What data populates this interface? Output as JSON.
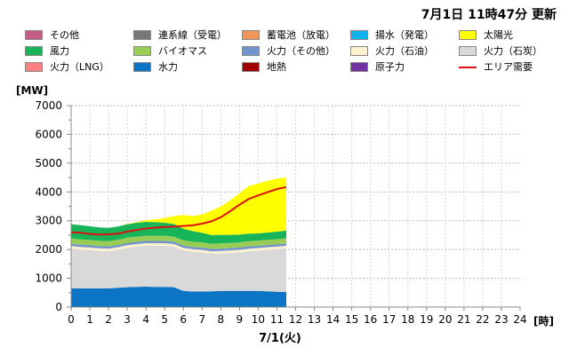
{
  "header": {
    "updated": "7月1日  11時47分 更新"
  },
  "legend": [
    {
      "label": "その他",
      "color": "#c45a86",
      "kind": "box"
    },
    {
      "label": "連系線（受電）",
      "color": "#777777",
      "kind": "box"
    },
    {
      "label": "蓄電池（放電）",
      "color": "#f0965a",
      "kind": "box"
    },
    {
      "label": "揚水（発電）",
      "color": "#11b3ee",
      "kind": "box"
    },
    {
      "label": "太陽光",
      "color": "#ffff00",
      "kind": "box"
    },
    {
      "label": "風力",
      "color": "#18b45a",
      "kind": "box"
    },
    {
      "label": "バイオマス",
      "color": "#99cc55",
      "kind": "box"
    },
    {
      "label": "火力（その他）",
      "color": "#7294cc",
      "kind": "box"
    },
    {
      "label": "火力（石油）",
      "color": "#fdf1d0",
      "kind": "box"
    },
    {
      "label": "火力（石炭）",
      "color": "#d9d9d9",
      "kind": "box"
    },
    {
      "label": "火力（LNG）",
      "color": "#ff8080",
      "kind": "box"
    },
    {
      "label": "水力",
      "color": "#0b74c4",
      "kind": "box"
    },
    {
      "label": "地熱",
      "color": "#a00000",
      "kind": "box"
    },
    {
      "label": "原子力",
      "color": "#7030a0",
      "kind": "box"
    },
    {
      "label": "エリア需要",
      "color": "#dd1111",
      "kind": "line"
    }
  ],
  "chart_data": {
    "type": "area",
    "stacked": true,
    "ylabel": "[MW]",
    "xlabel": "7/1(火)",
    "x_unit": "[時]",
    "xlim": [
      0,
      24
    ],
    "ylim": [
      0,
      7000
    ],
    "yticks": [
      "0",
      "1000",
      "2000",
      "3000",
      "4000",
      "5000",
      "6000",
      "7000"
    ],
    "xticks": [
      "0",
      "1",
      "2",
      "3",
      "4",
      "5",
      "6",
      "7",
      "8",
      "9",
      "10",
      "11",
      "12",
      "13",
      "14",
      "15",
      "16",
      "17",
      "18",
      "19",
      "20",
      "21",
      "22",
      "23",
      "24"
    ],
    "x": [
      0,
      0.5,
      1,
      1.5,
      2,
      2.5,
      3,
      3.5,
      4,
      4.5,
      5,
      5.5,
      6,
      6.5,
      7,
      7.5,
      8,
      8.5,
      9,
      9.5,
      10,
      10.5,
      11,
      11.5
    ],
    "series": [
      {
        "name": "水力",
        "color": "#0b74c4",
        "values": [
          650,
          650,
          650,
          650,
          650,
          670,
          690,
          700,
          710,
          700,
          700,
          690,
          560,
          540,
          540,
          550,
          560,
          560,
          560,
          560,
          560,
          550,
          530,
          520
        ]
      },
      {
        "name": "火力（石炭）",
        "color": "#d9d9d9",
        "values": [
          1380,
          1350,
          1330,
          1300,
          1290,
          1320,
          1370,
          1400,
          1420,
          1430,
          1430,
          1410,
          1410,
          1380,
          1360,
          1300,
          1300,
          1320,
          1340,
          1380,
          1400,
          1440,
          1480,
          1520
        ]
      },
      {
        "name": "火力（石油）",
        "color": "#fdf1d0",
        "values": [
          90,
          90,
          90,
          90,
          90,
          90,
          90,
          90,
          90,
          90,
          90,
          90,
          90,
          90,
          90,
          90,
          90,
          90,
          90,
          90,
          90,
          90,
          90,
          90
        ]
      },
      {
        "name": "火力（その他）",
        "color": "#7294cc",
        "values": [
          80,
          80,
          80,
          80,
          80,
          80,
          80,
          80,
          80,
          80,
          80,
          80,
          80,
          80,
          80,
          80,
          80,
          80,
          80,
          80,
          80,
          80,
          80,
          80
        ]
      },
      {
        "name": "バイオマス",
        "color": "#99cc55",
        "values": [
          180,
          180,
          180,
          180,
          180,
          180,
          180,
          180,
          180,
          180,
          180,
          180,
          180,
          180,
          180,
          180,
          180,
          180,
          180,
          180,
          180,
          180,
          180,
          180
        ]
      },
      {
        "name": "風力",
        "color": "#18b45a",
        "values": [
          500,
          500,
          480,
          470,
          460,
          460,
          470,
          480,
          480,
          470,
          450,
          440,
          400,
          370,
          330,
          300,
          300,
          280,
          270,
          260,
          250,
          250,
          260,
          270
        ]
      },
      {
        "name": "太陽光",
        "color": "#ffff00",
        "values": [
          0,
          0,
          0,
          0,
          0,
          0,
          10,
          20,
          60,
          100,
          170,
          270,
          480,
          520,
          640,
          850,
          980,
          1200,
          1430,
          1660,
          1730,
          1800,
          1840,
          1850
        ]
      }
    ],
    "line": {
      "name": "エリア需要",
      "color": "#dd1111",
      "values": [
        2600,
        2580,
        2540,
        2520,
        2530,
        2550,
        2620,
        2680,
        2730,
        2760,
        2780,
        2800,
        2820,
        2840,
        2900,
        2980,
        3120,
        3330,
        3560,
        3760,
        3880,
        3990,
        4100,
        4170
      ]
    }
  }
}
